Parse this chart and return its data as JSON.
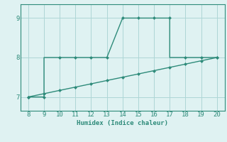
{
  "line1_x": [
    8,
    9,
    9,
    10,
    11,
    12,
    13,
    14,
    15,
    16,
    17,
    17,
    18,
    19,
    20
  ],
  "line1_y": [
    7,
    7,
    8,
    8,
    8,
    8,
    8,
    9,
    9,
    9,
    9,
    8,
    8,
    8,
    8
  ],
  "line1_markers_x": [
    8,
    9,
    10,
    11,
    12,
    13,
    14,
    15,
    16,
    17,
    18,
    19,
    20
  ],
  "line1_markers_y": [
    7,
    7,
    8,
    8,
    8,
    8,
    9,
    9,
    9,
    9,
    8,
    8,
    8
  ],
  "line2_x": [
    8,
    9,
    10,
    11,
    12,
    13,
    14,
    15,
    16,
    17,
    18,
    19,
    20
  ],
  "line2_y": [
    7.0,
    7.083,
    7.167,
    7.25,
    7.333,
    7.417,
    7.5,
    7.583,
    7.667,
    7.75,
    7.833,
    7.917,
    8.0
  ],
  "line_color": "#2e8b7a",
  "marker_style": "D",
  "marker_size": 2.5,
  "xlabel": "Humidex (Indice chaleur)",
  "xlim": [
    7.5,
    20.5
  ],
  "ylim": [
    6.65,
    9.35
  ],
  "xticks": [
    8,
    9,
    10,
    11,
    12,
    13,
    14,
    15,
    16,
    17,
    18,
    19,
    20
  ],
  "yticks": [
    7,
    8,
    9
  ],
  "background_color": "#dff2f2",
  "grid_color": "#aed6d6",
  "spine_color": "#2e8b7a"
}
